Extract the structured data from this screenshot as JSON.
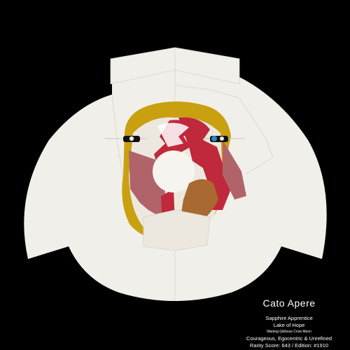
{
  "character": {
    "name": "Cato Apere",
    "title": "Sapphire Apprentice",
    "origin": "Lake of Hope",
    "moon_phase": "Waning Gibbous Crow Moon",
    "traits": "Courageous, Egocentric & Unrefined",
    "rarity": "Rarity Score: 643 / Edition: #1910"
  },
  "colors": {
    "background": "#000000",
    "robe": "#f1efe9",
    "gold": "#c8a010",
    "crimson": "#c0283c",
    "mauve": "#b0646a",
    "bronze": "#a86a30",
    "eye_blue": "#2a8ab8"
  }
}
